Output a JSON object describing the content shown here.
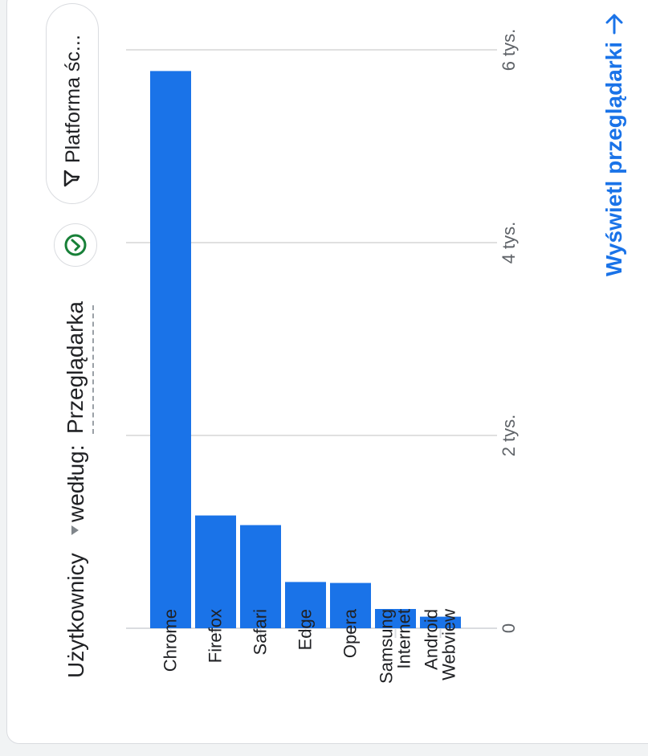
{
  "header": {
    "metric_label": "Użytkownicy",
    "dimension_prefix": "według:",
    "dimension_value": "Przeglądarka",
    "filter_chip_label": "Platforma śc..."
  },
  "footer": {
    "view_link_label": "Wyświetl przeglądarki"
  },
  "colors": {
    "bar": "#1a73e8",
    "link": "#1a73e8",
    "compare_icon": "#188038"
  },
  "icons": {
    "compare": "check-circle-icon",
    "filter": "filter-icon",
    "link_arrow": "arrow-right-icon",
    "dropdown": "caret-down-icon"
  },
  "chart_data": {
    "type": "bar",
    "orientation": "vertical",
    "categories": [
      "Chrome",
      "Firefox",
      "Safari",
      "Edge",
      "Opera",
      "Samsung Internet",
      "Android Webview"
    ],
    "values": [
      5780,
      1170,
      1070,
      480,
      470,
      200,
      120
    ],
    "y_ticks": [
      0,
      2000,
      4000,
      6000
    ],
    "y_tick_labels": [
      "0",
      "2 tys.",
      "4 tys.",
      "6 tys."
    ],
    "ylim": [
      0,
      6000
    ],
    "grid": true,
    "legend": "none"
  }
}
